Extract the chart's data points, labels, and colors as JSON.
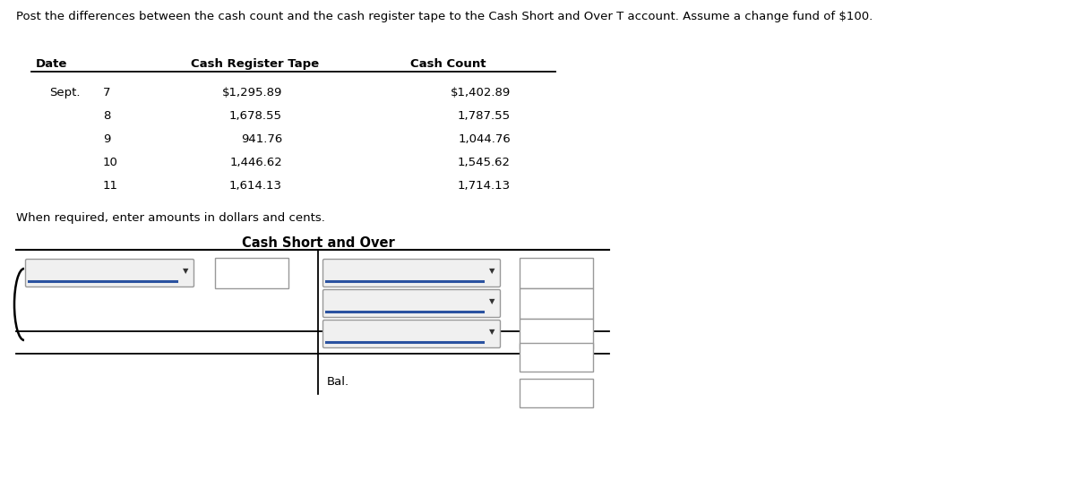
{
  "title_text": "Post the differences between the cash count and the cash register tape to the Cash Short and Over T account. Assume a change fund of $100.",
  "table_headers": [
    "Date",
    "Cash Register Tape",
    "Cash Count"
  ],
  "table_rows": [
    [
      "Sept.",
      "7",
      "$1,295.89",
      "$1,402.89"
    ],
    [
      "",
      "8",
      "1,678.55",
      "1,787.55"
    ],
    [
      "",
      "9",
      "941.76",
      "1,044.76"
    ],
    [
      "",
      "10",
      "1,446.62",
      "1,545.62"
    ],
    [
      "",
      "11",
      "1,614.13",
      "1,714.13"
    ]
  ],
  "note_text": "When required, enter amounts in dollars and cents.",
  "t_account_title": "Cash Short and Over",
  "bal_label": "Bal.",
  "bg_color": "#ffffff",
  "text_color": "#000000",
  "box_border_color": "#b0b0b0",
  "box_fill_color": "#f8f8f8",
  "dropdown_fill": "#f0f0f0",
  "dropdown_line_color": "#2a52a0",
  "line_color": "#000000",
  "header_fontsize": 9.5,
  "body_fontsize": 9.5,
  "title_fontsize": 9.5,
  "note_fontsize": 9.5,
  "t_title_fontsize": 10.5
}
